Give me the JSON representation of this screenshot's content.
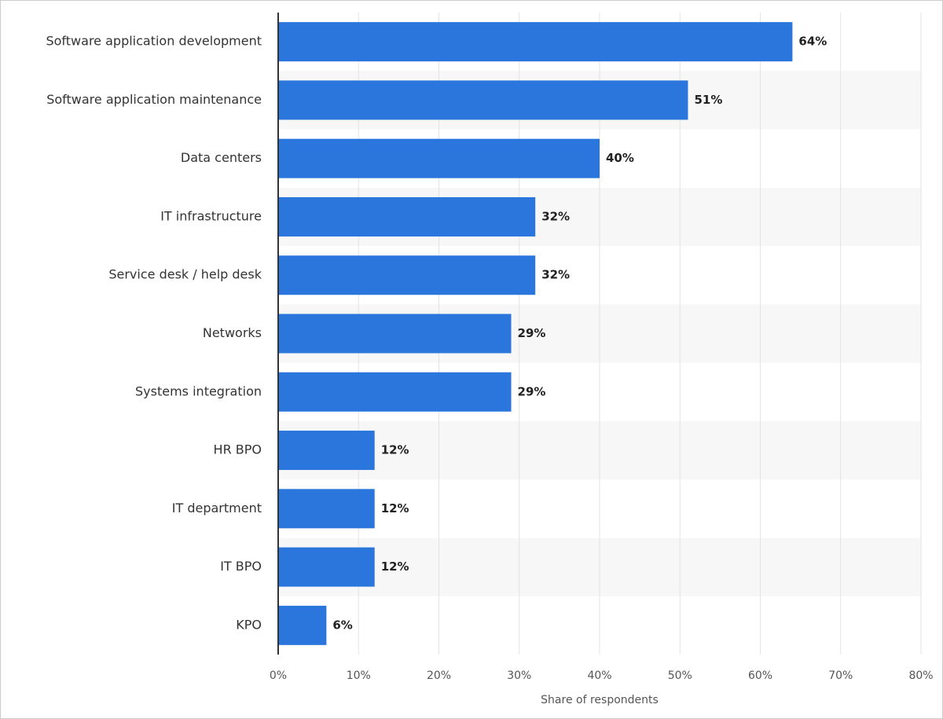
{
  "chart_data": {
    "type": "bar",
    "orientation": "horizontal",
    "x_label": "Share of respondents",
    "categories": [
      "Software application development",
      "Software application maintenance",
      "Data centers",
      "IT infrastructure",
      "Service desk / help desk",
      "Networks",
      "Systems integration",
      "HR BPO",
      "IT department",
      "IT BPO",
      "KPO"
    ],
    "values": [
      64,
      51,
      40,
      32,
      32,
      29,
      29,
      12,
      12,
      12,
      6
    ],
    "value_labels": [
      "64%",
      "51%",
      "40%",
      "32%",
      "32%",
      "29%",
      "29%",
      "12%",
      "12%",
      "12%",
      "6%"
    ],
    "color": "#2a76dd",
    "xlim": [
      0,
      80
    ],
    "xticks": [
      {
        "value": 0,
        "label": "0%"
      },
      {
        "value": 10,
        "label": "10%"
      },
      {
        "value": 20,
        "label": "20%"
      },
      {
        "value": 30,
        "label": "30%"
      },
      {
        "value": 40,
        "label": "40%"
      },
      {
        "value": 50,
        "label": "50%"
      },
      {
        "value": 60,
        "label": "60%"
      },
      {
        "value": 70,
        "label": "70%"
      },
      {
        "value": 80,
        "label": "80%"
      }
    ],
    "grid": true
  }
}
